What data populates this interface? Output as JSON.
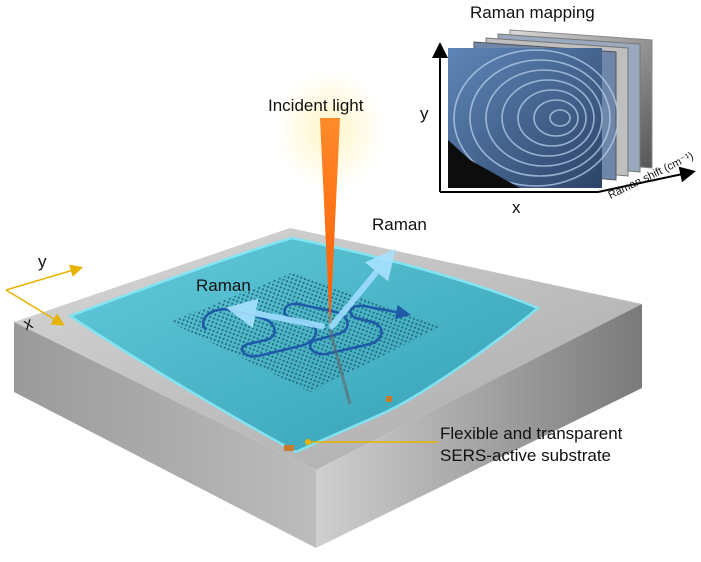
{
  "labels": {
    "incident_light": "Incident light",
    "raman_up": "Raman",
    "raman_left": "Raman",
    "raman_mapping": "Raman mapping",
    "axis_x": "x",
    "axis_y": "y",
    "raman_shift": "Raman shift (cm⁻¹)",
    "stage_x": "x",
    "stage_y": "y",
    "substrate_line1": "Flexible and transparent",
    "substrate_line2": "SERS-active substrate"
  },
  "colors": {
    "film": "#3fb8cc",
    "film_edge": "#7fe6f5",
    "beam": "#ff6a1a",
    "raman_arrow": "#8fd8ff",
    "path": "#1e5aa8",
    "callout": "#e8b400",
    "slab_top": "#c9c9c9",
    "slab_side": "#8e8e8e"
  }
}
